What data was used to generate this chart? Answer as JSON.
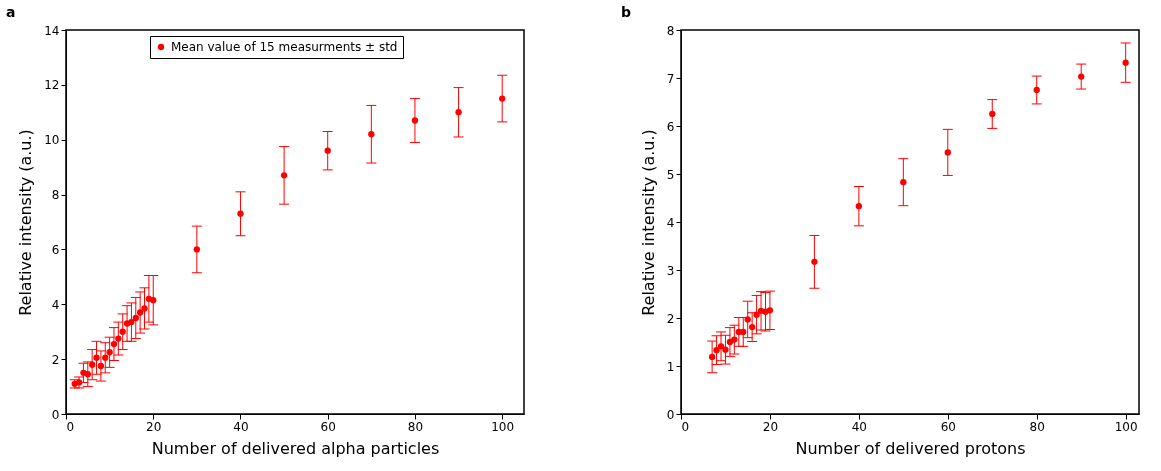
{
  "chart_data": [
    {
      "type": "scatter",
      "title": "a",
      "xlabel": "Number of delivered alpha particles",
      "ylabel": "Relative intensity (a.u.)",
      "xlim": [
        0,
        105
      ],
      "ylim": [
        0,
        14
      ],
      "xticks": [
        0,
        20,
        40,
        60,
        80,
        100
      ],
      "yticks": [
        0,
        2,
        4,
        6,
        8,
        10,
        12,
        14
      ],
      "legend": "top",
      "marker": "circle",
      "series": [
        {
          "name": "Mean value of 15 measurments ± std",
          "color": "#ff0000",
          "x": [
            2,
            3,
            4,
            5,
            6,
            7,
            8,
            9,
            10,
            11,
            12,
            13,
            14,
            15,
            16,
            17,
            18,
            19,
            20,
            30,
            40,
            50,
            60,
            70,
            80,
            90,
            100
          ],
          "values": [
            1.1,
            1.15,
            1.5,
            1.45,
            1.8,
            2.05,
            1.75,
            2.05,
            2.25,
            2.55,
            2.75,
            3.0,
            3.3,
            3.35,
            3.5,
            3.7,
            3.85,
            4.2,
            4.15,
            6.0,
            7.3,
            8.7,
            9.6,
            10.2,
            10.7,
            11.0,
            11.5
          ],
          "errors": [
            0.15,
            0.2,
            0.35,
            0.45,
            0.55,
            0.6,
            0.55,
            0.55,
            0.55,
            0.6,
            0.6,
            0.65,
            0.65,
            0.7,
            0.75,
            0.75,
            0.75,
            0.85,
            0.9,
            0.85,
            0.8,
            1.05,
            0.7,
            1.05,
            0.8,
            0.9,
            0.85
          ]
        }
      ]
    },
    {
      "type": "scatter",
      "title": "b",
      "xlabel": "Number of delivered protons",
      "ylabel": "Relative intensity (a.u.)",
      "xlim": [
        0,
        103
      ],
      "ylim": [
        0,
        8
      ],
      "xticks": [
        0,
        20,
        40,
        60,
        80,
        100
      ],
      "yticks": [
        0,
        1,
        2,
        3,
        4,
        5,
        6,
        7,
        8
      ],
      "legend": "top",
      "marker": "circle",
      "series": [
        {
          "name": "Mean value of 15 measurments ± std",
          "color": "#ff0000",
          "x": [
            7,
            8,
            9,
            10,
            11,
            12,
            13,
            14,
            15,
            16,
            17,
            18,
            19,
            20,
            30,
            40,
            50,
            60,
            70,
            80,
            90,
            100
          ],
          "values": [
            1.19,
            1.33,
            1.41,
            1.34,
            1.5,
            1.55,
            1.71,
            1.71,
            1.97,
            1.81,
            2.07,
            2.15,
            2.13,
            2.16,
            3.17,
            4.33,
            4.83,
            5.45,
            6.25,
            6.75,
            7.03,
            7.32
          ],
          "errors": [
            0.33,
            0.3,
            0.3,
            0.3,
            0.3,
            0.3,
            0.3,
            0.3,
            0.38,
            0.3,
            0.4,
            0.4,
            0.4,
            0.4,
            0.55,
            0.41,
            0.49,
            0.48,
            0.3,
            0.29,
            0.26,
            0.41
          ]
        }
      ]
    }
  ]
}
